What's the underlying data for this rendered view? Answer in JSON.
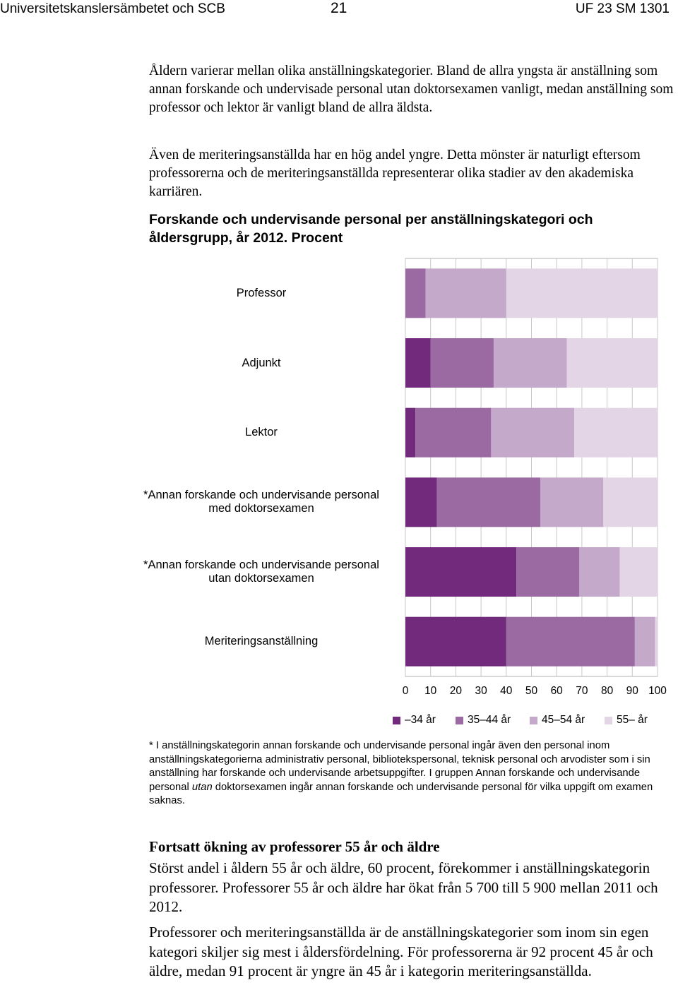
{
  "header": {
    "left": "Universitetskanslersämbetet och SCB",
    "page_number": "21",
    "right": "UF 23 SM 1301"
  },
  "intro": {
    "p1": "Åldern varierar mellan olika anställningskategorier. Bland de allra yngsta är anställning som annan forskande och undervisade personal utan doktorsexamen vanligt, medan anställning som professor och lektor är vanligt bland de allra äldsta.",
    "p2": "Även de meriteringsanställda har en hög andel yngre. Detta mönster är naturligt eftersom professorerna och de meriteringsanställda representerar olika stadier av den akademiska karriären."
  },
  "figure_caption": "Forskande och undervisande personal per anställningskategori och åldersgrupp, år 2012. Procent",
  "chart_data": {
    "type": "bar",
    "orientation": "horizontal",
    "stacked": true,
    "title": "",
    "xlabel": "",
    "ylabel": "",
    "xlim": [
      0,
      100
    ],
    "x_ticks": [
      "0",
      "10",
      "20",
      "30",
      "40",
      "50",
      "60",
      "70",
      "80",
      "90",
      "100"
    ],
    "grid": true,
    "legend_position": "bottom",
    "categories": [
      [
        "Professor"
      ],
      [
        "Adjunkt"
      ],
      [
        "Lektor"
      ],
      [
        "*Annan forskande och undervisande personal",
        "med doktorsexamen"
      ],
      [
        "*Annan forskande och undervisande personal",
        "utan doktorsexamen"
      ],
      [
        "Meriteringsanställning"
      ]
    ],
    "series": [
      {
        "name": "–34 år",
        "color": "#722a7c",
        "values": [
          0,
          10,
          4,
          12.5,
          44,
          40
        ]
      },
      {
        "name": "35–44 år",
        "color": "#9c6aa3",
        "values": [
          8,
          25,
          30,
          41,
          25,
          51
        ]
      },
      {
        "name": "45–54 år",
        "color": "#c5a9ca",
        "values": [
          32,
          29,
          33,
          25,
          16,
          8
        ]
      },
      {
        "name": "55– år",
        "color": "#e3d5e5",
        "values": [
          60,
          36,
          33,
          21.5,
          15,
          1
        ]
      }
    ]
  },
  "footnote": {
    "part1": "* I anställningskategorin annan forskande och undervisande personal ingår även den personal inom anställningskategorierna administrativ personal, bibliotekspersonal, teknisk personal och arvodister som i sin anställning har forskande och undervisande arbetsuppgifter. I gruppen Annan forskande och undervisande personal ",
    "emph": "utan",
    "part2": " doktorsexamen ingår annan forskande och undervisande personal för vilka uppgift om examen saknas."
  },
  "section2": {
    "heading": "Fortsatt ökning av professorer 55 år och äldre",
    "p1": "Störst andel i åldern 55 år och äldre, 60 procent, förekommer i anställningskategorin professorer. Professorer 55 år och äldre har ökat från 5 700 till 5 900 mellan 2011 och 2012.",
    "p2": "Professorer och meriteringsanställda är de anställningskategorier som inom sin egen kategori skiljer sig mest i åldersfördelning. För professorerna är 92 procent 45 år och äldre, medan 91 procent är yngre än 45 år i kategorin meriteringsanställda."
  }
}
